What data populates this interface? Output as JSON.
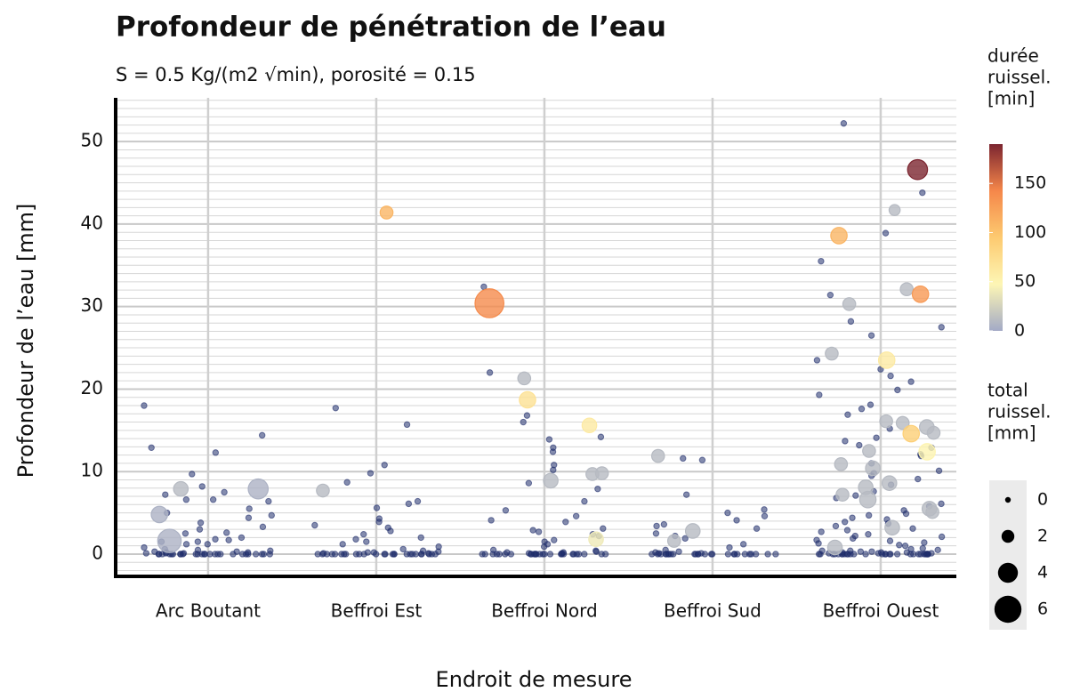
{
  "chart_data": {
    "type": "scatter",
    "title": "Profondeur de pénétration de l’eau",
    "subtitle": "S = 0.5 Kg/(m2 √min), porosité = 0.15",
    "x_label": "Endroit de mesure",
    "y_label": "Profondeur de l’eau [mm]",
    "ylim": [
      -2.7,
      55.3
    ],
    "yticks": [
      0,
      10,
      20,
      30,
      40,
      50
    ],
    "minor_step": 1,
    "grid": true,
    "dot_color": "#1f2d6b",
    "series": [
      {
        "category": "Arc Boutant",
        "values": [
          18,
          14.4,
          12.9,
          12.3,
          9.7,
          8.2,
          7.5,
          7.2,
          6.6,
          6.6,
          6.4,
          5.5,
          5,
          4.7,
          4.4,
          3.8,
          3.3,
          3,
          2.6,
          2.5,
          2,
          1.8,
          1.7,
          1.5,
          1.5,
          1.2,
          1.2,
          0.8,
          0.6,
          0.5,
          0.4,
          0.3,
          0,
          0,
          0,
          0,
          0,
          0,
          0,
          0,
          0,
          0,
          0,
          0,
          0,
          0,
          0,
          0,
          0,
          0,
          0,
          0,
          0,
          0,
          0,
          0,
          0,
          0,
          0.1,
          0.2,
          0.1,
          0.3,
          0.2,
          0.1
        ],
        "bubbles": {
          "values": [
            7.9,
            7.9,
            4.8,
            1.6
          ],
          "durations": [
            10,
            5,
            5,
            5
          ],
          "totals": [
            2.5,
            4,
            3,
            5
          ]
        }
      },
      {
        "category": "Beffroi Est",
        "values": [
          17.7,
          15.7,
          10.8,
          9.8,
          8.7,
          6.4,
          6.1,
          5.6,
          4.3,
          3.9,
          3.5,
          3.2,
          2.8,
          2.4,
          2,
          1.8,
          1.5,
          1.2,
          0.9,
          0.6,
          0.4,
          0,
          0,
          0,
          0,
          0,
          0,
          0,
          0,
          0,
          0,
          0,
          0,
          0,
          0,
          0,
          0,
          0,
          0,
          0,
          0,
          0,
          0,
          0,
          0,
          0,
          0,
          0.1,
          0.2,
          0.3,
          0.1,
          0.2
        ],
        "bubbles": {
          "values": [
            41.4,
            7.7
          ],
          "durations": [
            110,
            10
          ],
          "totals": [
            2,
            2
          ]
        }
      },
      {
        "category": "Beffroi Nord",
        "values": [
          32.4,
          22,
          16.8,
          16,
          14.2,
          13.9,
          12.9,
          12.4,
          10.8,
          10.2,
          8.6,
          7.9,
          6.4,
          5.3,
          4.6,
          3.9,
          3.1,
          2.7,
          2.2,
          1.5,
          1.2,
          0.9,
          0.5,
          4.1,
          2.9,
          2.4,
          1.7,
          0,
          0,
          0,
          0,
          0,
          0,
          0,
          0,
          0,
          0,
          0,
          0,
          0,
          0,
          0,
          0,
          0,
          0,
          0,
          0,
          0,
          0,
          0,
          0,
          0,
          0,
          0,
          0.1,
          0.2,
          0.3,
          0.1,
          0.2,
          0.4
        ],
        "bubbles": {
          "values": [
            30.4,
            21.3,
            18.7,
            15.6,
            9.8,
            9.7,
            8.9,
            1.8
          ],
          "durations": [
            140,
            10,
            70,
            60,
            10,
            10,
            10,
            40
          ],
          "totals": [
            6.5,
            2,
            3,
            2.5,
            2,
            2,
            2.5,
            2.5
          ]
        }
      },
      {
        "category": "Beffroi Sud",
        "values": [
          11.6,
          11.4,
          7.2,
          5.4,
          5,
          4.6,
          4.1,
          3.6,
          3.1,
          2.5,
          1.9,
          1.2,
          0.8,
          0.5,
          3.4,
          2.2,
          0,
          0,
          0,
          0,
          0,
          0,
          0,
          0,
          0,
          0,
          0,
          0,
          0,
          0,
          0,
          0,
          0,
          0,
          0,
          0,
          0,
          0,
          0,
          0,
          0,
          0,
          0.1,
          0.2,
          0.3,
          0.1
        ],
        "bubbles": {
          "values": [
            11.9,
            2.8,
            1.6
          ],
          "durations": [
            10,
            10,
            10
          ],
          "totals": [
            2,
            2.5,
            2
          ]
        }
      },
      {
        "category": "Beffroi Ouest",
        "values": [
          52.2,
          43.8,
          38.9,
          35.5,
          31.4,
          28.2,
          27.5,
          26.5,
          23.5,
          22.4,
          21.6,
          20.9,
          19.9,
          19.3,
          18.1,
          17.6,
          16.9,
          14.1,
          13.2,
          12.9,
          11.9,
          11,
          10.1,
          9.5,
          9.1,
          7.6,
          6.1,
          4.7,
          4.2,
          3.7,
          2.9,
          2.4,
          2.1,
          1.7,
          1.4,
          1.1,
          0.6,
          0.4,
          15.2,
          13.7,
          12.1,
          9.8,
          8.4,
          7.1,
          6.8,
          5.8,
          5.3,
          4.9,
          4.4,
          3.9,
          3.4,
          3.1,
          2.7,
          2.2,
          1.9,
          1.6,
          1.3,
          1,
          0.7,
          0.5,
          0.3,
          0,
          0,
          0,
          0,
          0,
          0,
          0,
          0,
          0,
          0,
          0,
          0,
          0,
          0,
          0,
          0,
          0,
          0,
          0,
          0,
          0,
          0,
          0,
          0,
          0,
          0,
          0,
          0,
          0,
          0.1,
          0.2,
          0.3,
          0.1,
          0.2,
          0.4,
          0.2,
          0.1
        ],
        "bubbles": {
          "values": [
            46.6,
            41.7,
            38.6,
            32.1,
            31.5,
            30.3,
            24.3,
            23.5,
            16.1,
            15.9,
            15.4,
            14.7,
            14.6,
            12.5,
            12.4,
            10.9,
            10.4,
            8.6,
            8.1,
            7.2,
            6.6,
            5.5,
            5.1,
            3.2,
            0.8
          ],
          "durations": [
            190,
            10,
            110,
            10,
            130,
            10,
            10,
            60,
            10,
            10,
            10,
            10,
            90,
            10,
            50,
            10,
            10,
            10,
            10,
            10,
            10,
            10,
            10,
            10,
            10
          ],
          "totals": [
            4,
            1.5,
            3,
            2,
            3,
            2,
            2,
            3,
            2,
            2,
            2.5,
            2,
            3,
            2,
            3,
            2,
            2.5,
            2.5,
            2.5,
            2,
            3,
            2.5,
            2,
            2.5,
            2.5
          ]
        }
      }
    ],
    "color_legend": {
      "title": [
        "durée",
        "ruissel.",
        "[min]"
      ],
      "lim": [
        0,
        190
      ],
      "ticks": [
        0,
        50,
        100,
        150
      ],
      "colors": [
        "#a3aac6",
        "#fdf6b5",
        "#fdca70",
        "#f5874a",
        "#7c2530"
      ]
    },
    "size_legend": {
      "title": [
        "total",
        "ruissel.",
        "[mm]"
      ],
      "ticks": [
        0,
        2,
        4,
        6
      ]
    }
  }
}
